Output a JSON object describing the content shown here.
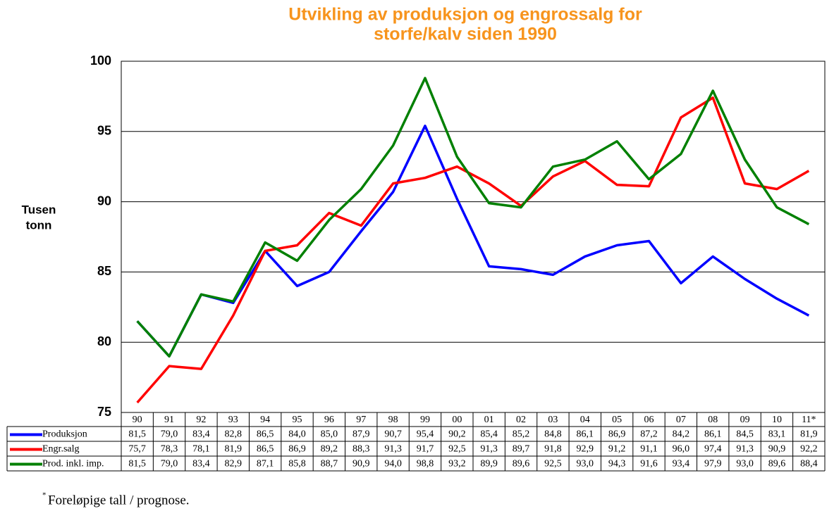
{
  "chart_data": {
    "type": "line",
    "title": [
      "Utvikling av produksjon og engrossalg for",
      "storfe/kalv siden 1990"
    ],
    "y_label": [
      "Tusen",
      "tonn"
    ],
    "categories": [
      "90",
      "91",
      "92",
      "93",
      "94",
      "95",
      "96",
      "97",
      "98",
      "99",
      "00",
      "01",
      "02",
      "03",
      "04",
      "05",
      "06",
      "07",
      "08",
      "09",
      "10",
      "11*"
    ],
    "ylim": [
      75,
      100
    ],
    "yticks": [
      75,
      80,
      85,
      90,
      95,
      100
    ],
    "grid": true,
    "series": [
      {
        "name": "Produksjon",
        "color": "#0000ff",
        "values": [
          81.5,
          79.0,
          83.4,
          82.8,
          86.5,
          84.0,
          85.0,
          87.9,
          90.7,
          95.4,
          90.2,
          85.4,
          85.2,
          84.8,
          86.1,
          86.9,
          87.2,
          84.2,
          86.1,
          84.5,
          83.1,
          81.9
        ],
        "value_labels": [
          "81,5",
          "79,0",
          "83,4",
          "82,8",
          "86,5",
          "84,0",
          "85,0",
          "87,9",
          "90,7",
          "95,4",
          "90,2",
          "85,4",
          "85,2",
          "84,8",
          "86,1",
          "86,9",
          "87,2",
          "84,2",
          "86,1",
          "84,5",
          "83,1",
          "81,9"
        ]
      },
      {
        "name": "Engr.salg",
        "color": "#ff0000",
        "values": [
          75.7,
          78.3,
          78.1,
          81.9,
          86.5,
          86.9,
          89.2,
          88.3,
          91.3,
          91.7,
          92.5,
          91.3,
          89.7,
          91.8,
          92.9,
          91.2,
          91.1,
          96.0,
          97.4,
          91.3,
          90.9,
          92.2
        ],
        "value_labels": [
          "75,7",
          "78,3",
          "78,1",
          "81,9",
          "86,5",
          "86,9",
          "89,2",
          "88,3",
          "91,3",
          "91,7",
          "92,5",
          "91,3",
          "89,7",
          "91,8",
          "92,9",
          "91,2",
          "91,1",
          "96,0",
          "97,4",
          "91,3",
          "90,9",
          "92,2"
        ]
      },
      {
        "name": "Prod. inkl. imp.",
        "color": "#008000",
        "values": [
          81.5,
          79.0,
          83.4,
          82.9,
          87.1,
          85.8,
          88.7,
          90.9,
          94.0,
          98.8,
          93.2,
          89.9,
          89.6,
          92.5,
          93.0,
          94.3,
          91.6,
          93.4,
          97.9,
          93.0,
          89.6,
          88.4
        ],
        "value_labels": [
          "81,5",
          "79,0",
          "83,4",
          "82,9",
          "87,1",
          "85,8",
          "88,7",
          "90,9",
          "94,0",
          "98,8",
          "93,2",
          "89,9",
          "89,6",
          "92,5",
          "93,0",
          "94,3",
          "91,6",
          "93,4",
          "97,9",
          "93,0",
          "89,6",
          "88,4"
        ]
      }
    ],
    "footnote_marker": "*",
    "footnote": "Foreløpige tall / prognose."
  }
}
